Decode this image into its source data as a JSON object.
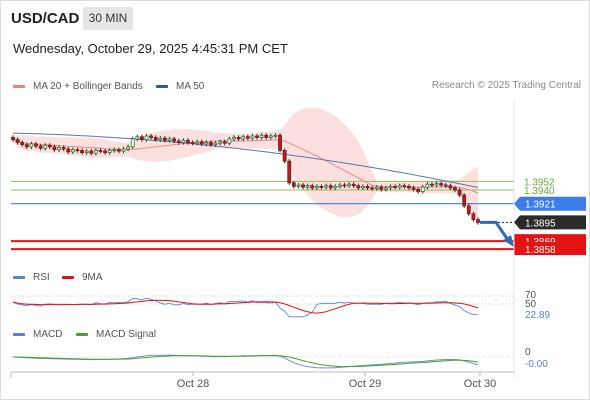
{
  "header": {
    "symbol": "USD/CAD",
    "timeframe": "30 MIN",
    "datetime": "Wednesday, October 29, 2025 4:45:31 PM CET"
  },
  "price_panel": {
    "legend": [
      {
        "label": "MA 20 + Bollinger Bands",
        "color": "#f08080"
      },
      {
        "label": "MA 50",
        "color": "#2e5a99"
      }
    ],
    "research": "Research © 2025 Trading Central",
    "levels": [
      {
        "label": "1.3952",
        "kind": "resistance",
        "color": "#8fbf5a"
      },
      {
        "label": "1.3940",
        "kind": "resistance",
        "color": "#8fbf5a"
      },
      {
        "label": "1.3921",
        "kind": "pivot",
        "color": "#3b7de9"
      },
      {
        "label": "1.3895",
        "kind": "last",
        "color": "#222222"
      },
      {
        "label": "1.3869",
        "kind": "target",
        "color": "#e31313"
      },
      {
        "label": "1.3858",
        "kind": "target",
        "color": "#e31313"
      }
    ]
  },
  "rsi_panel": {
    "legend": [
      {
        "label": "RSI",
        "color": "#5b7fd6"
      },
      {
        "label": "9MA",
        "color": "#e31313"
      }
    ],
    "ticks": [
      "70",
      "50"
    ],
    "current": "22.89"
  },
  "macd_panel": {
    "legend": [
      {
        "label": "MACD",
        "color": "#5b7fd6"
      },
      {
        "label": "MACD Signal",
        "color": "#4aa02c"
      }
    ],
    "ticks": [
      "0"
    ],
    "current": "-0.00"
  },
  "x_axis": {
    "ticks": [
      "Oct 28",
      "Oct 29",
      "Oct 30"
    ]
  },
  "chart_data": {
    "type": "candlestick",
    "symbol": "USD/CAD",
    "interval": "30 MIN",
    "x_ticks": [
      "Oct 28",
      "Oct 29",
      "Oct 30"
    ],
    "close": [
      1.401,
      1.4006,
      1.4003,
      1.4,
      1.4004,
      1.4001,
      1.3998,
      1.4002,
      1.4,
      1.3996,
      1.3999,
      1.3997,
      1.3993,
      1.3996,
      1.3995,
      1.3992,
      1.3994,
      1.3991,
      1.3995,
      1.3994,
      1.3992,
      1.3995,
      1.3996,
      1.3994,
      1.3997,
      1.4,
      1.4011,
      1.4014,
      1.401,
      1.4015,
      1.4013,
      1.401,
      1.4012,
      1.4009,
      1.4011,
      1.4008,
      1.4006,
      1.4009,
      1.4006,
      1.4005,
      1.4007,
      1.4004,
      1.4006,
      1.4003,
      1.4005,
      1.4007,
      1.4005,
      1.4011,
      1.4013,
      1.4011,
      1.4014,
      1.4012,
      1.4015,
      1.4013,
      1.4016,
      1.4013,
      1.4015,
      1.4016,
      1.3995,
      1.398,
      1.395,
      1.3945,
      1.3947,
      1.3944,
      1.3946,
      1.3943,
      1.3945,
      1.3944,
      1.3946,
      1.3943,
      1.3945,
      1.3947,
      1.3946,
      1.3948,
      1.3946,
      1.3943,
      1.3945,
      1.3943,
      1.3942,
      1.3944,
      1.3941,
      1.3943,
      1.3945,
      1.3944,
      1.3946,
      1.3945,
      1.3943,
      1.3941,
      1.3938,
      1.3944,
      1.3948,
      1.3947,
      1.3949,
      1.3947,
      1.3946,
      1.3943,
      1.394,
      1.3933,
      1.3918,
      1.3907,
      1.3899,
      1.3895
    ],
    "ma50_endpoints": {
      "start": 1.4019,
      "end": 1.3944
    },
    "levels": {
      "resistance": [
        1.3952,
        1.394
      ],
      "pivot": 1.3921,
      "last": 1.3895,
      "targets": [
        1.3869,
        1.3858
      ]
    },
    "rsi": {
      "current": 22.89,
      "ticks": [
        70,
        50
      ]
    },
    "macd": {
      "current": -0.0,
      "ticks": [
        0
      ]
    }
  }
}
